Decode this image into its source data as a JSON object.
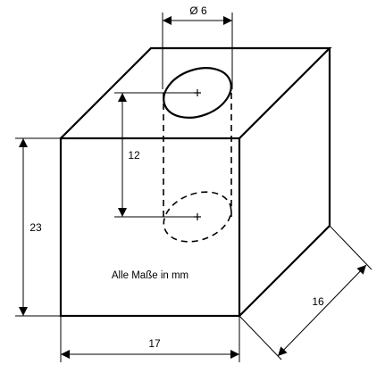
{
  "figure": {
    "note": "Alle Maße in mm",
    "dimensions": {
      "hole_diameter": "Ø 6",
      "hole_offset": "12",
      "height": "23",
      "width": "17",
      "depth": "16"
    }
  }
}
